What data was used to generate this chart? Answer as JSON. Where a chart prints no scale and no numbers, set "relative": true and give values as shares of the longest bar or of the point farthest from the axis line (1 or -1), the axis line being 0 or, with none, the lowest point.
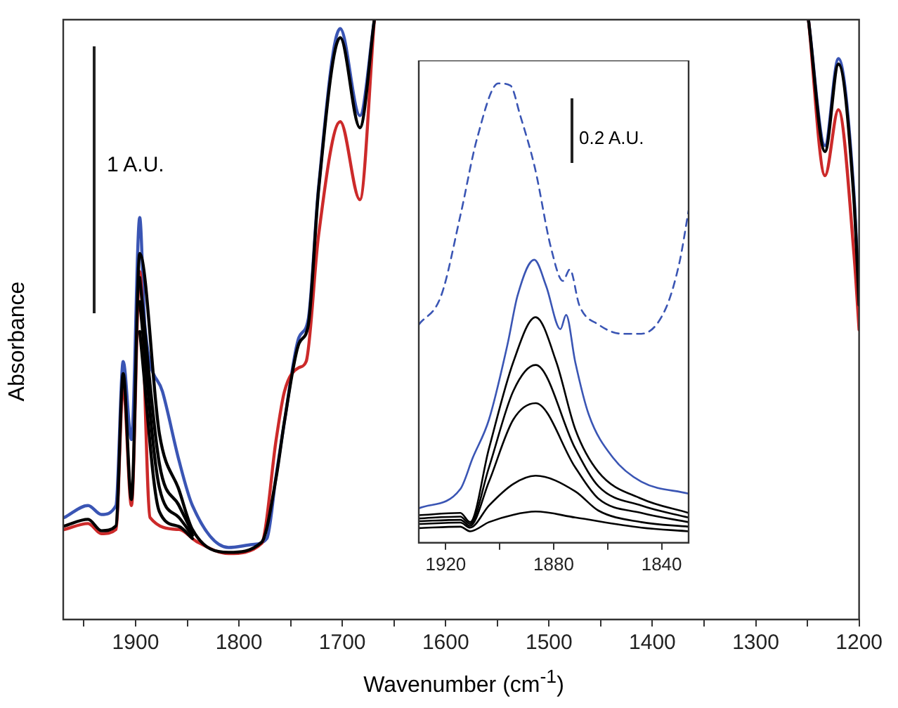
{
  "chart_data": [
    {
      "type": "line",
      "xlabel": "Wavenumber (cm$^{-1}$)",
      "ylabel": "Absorbance",
      "relative": true,
      "marker": "none",
      "xlim": [
        1970,
        1200
      ],
      "xticks": [
        {
          "value": 1950,
          "label": null
        },
        1900,
        {
          "value": 1850,
          "label": null
        },
        1800,
        {
          "value": 1750,
          "label": null
        },
        1700,
        {
          "value": 1650,
          "label": null
        },
        1600,
        {
          "value": 1550,
          "label": null
        },
        1500,
        {
          "value": 1450,
          "label": null
        },
        1400,
        {
          "value": 1350,
          "label": null
        },
        1300,
        {
          "value": 1250,
          "label": null
        },
        1200
      ],
      "annotations": [
        "1 A.U."
      ],
      "series": [
        {
          "color": "#000000",
          "x": [
            1969,
            1946,
            1933,
            1919,
            1912,
            1904,
            1896,
            1877,
            1858,
            1845,
            1810,
            1778,
            1764,
            1756,
            1742,
            1733,
            1723,
            1702,
            1683,
            1669,
            1460,
            1249,
            1233,
            1220,
            1205,
            1200
          ],
          "values": [
            0.156,
            0.167,
            0.148,
            0.156,
            0.41,
            0.2,
            0.61,
            0.31,
            0.216,
            0.15,
            0.112,
            0.129,
            0.237,
            0.33,
            0.46,
            0.49,
            0.715,
            0.97,
            0.82,
            1.0,
            null,
            1.0,
            0.78,
            0.926,
            0.7,
            0.524
          ]
        },
        {
          "color": "#000000",
          "x": [
            1896,
            1877,
            1858,
            1845
          ],
          "values": [
            0.57,
            0.26,
            0.19,
            0.145
          ]
        },
        {
          "color": "#000000",
          "x": [
            1896,
            1877,
            1858,
            1845
          ],
          "values": [
            0.53,
            0.22,
            0.17,
            0.14
          ]
        },
        {
          "color": "#000000",
          "x": [
            1896,
            1877,
            1858,
            1845
          ],
          "values": [
            0.48,
            0.18,
            0.155,
            0.135
          ]
        },
        {
          "color": "#cc2a2a",
          "x": [
            1969,
            1946,
            1933,
            1919,
            1912,
            1904,
            1896,
            1886,
            1858,
            1841,
            1810,
            1778,
            1764,
            1756,
            1742,
            1735,
            1723,
            1702,
            1683,
            1669,
            1460,
            1249,
            1233,
            1220,
            1205,
            1200
          ],
          "values": [
            0.15,
            0.16,
            0.143,
            0.15,
            0.39,
            0.19,
            0.58,
            0.17,
            0.15,
            0.13,
            0.11,
            0.127,
            0.3,
            0.38,
            0.42,
            0.43,
            0.64,
            0.83,
            0.7,
            1.0,
            null,
            1.0,
            0.74,
            0.85,
            0.61,
            0.483
          ]
        },
        {
          "color": "#3a55b4",
          "x": [
            1969,
            1946,
            1933,
            1919,
            1912,
            1904,
            1896,
            1891,
            1874,
            1858,
            1845,
            1810,
            1787,
            1773,
            1764,
            1756,
            1742,
            1733,
            1723,
            1702,
            1683,
            1669,
            1460,
            1249,
            1233,
            1220,
            1205,
            1200
          ],
          "values": [
            0.17,
            0.19,
            0.175,
            0.19,
            0.43,
            0.3,
            0.67,
            0.49,
            0.38,
            0.265,
            0.19,
            0.12,
            0.125,
            0.135,
            0.24,
            0.33,
            0.47,
            0.5,
            0.72,
            0.985,
            0.84,
            1.0,
            null,
            1.0,
            0.79,
            0.935,
            0.71,
            0.53
          ]
        }
      ]
    },
    {
      "type": "line",
      "relative": true,
      "marker": "none",
      "xlim": [
        1930,
        1830
      ],
      "xticks": [
        1920,
        {
          "value": 1900,
          "label": null
        },
        1880,
        {
          "value": 1860,
          "label": null
        },
        1840
      ],
      "annotations": [
        "0.2 A.U."
      ],
      "series": [
        {
          "color": "#000000",
          "x": [
            1930,
            1914.6,
            1911,
            1904,
            1895,
            1886.7,
            1879,
            1872,
            1863.4,
            1847.5,
            1830
          ],
          "values": [
            0.06,
            0.065,
            0.045,
            0.205,
            0.393,
            0.491,
            0.393,
            0.247,
            0.154,
            0.096,
            0.065
          ]
        },
        {
          "color": "#000000",
          "x": [
            1930,
            1914.6,
            1911,
            1904,
            1895,
            1886.7,
            1872,
            1863.4,
            1847.5,
            1830
          ],
          "values": [
            0.053,
            0.057,
            0.041,
            0.164,
            0.33,
            0.387,
            0.205,
            0.123,
            0.081,
            0.055
          ]
        },
        {
          "color": "#000000",
          "x": [
            1930,
            1914.6,
            1911,
            1904,
            1895,
            1886.7,
            1872,
            1863.4,
            1847.5,
            1830
          ],
          "values": [
            0.047,
            0.05,
            0.037,
            0.133,
            0.268,
            0.304,
            0.164,
            0.096,
            0.065,
            0.045
          ]
        },
        {
          "color": "#000000",
          "x": [
            1930,
            1914.6,
            1911,
            1904,
            1895,
            1886.7,
            1872,
            1863.4,
            1847.5,
            1830
          ],
          "values": [
            0.041,
            0.044,
            0.033,
            0.081,
            0.128,
            0.146,
            0.112,
            0.07,
            0.045,
            0.035
          ]
        },
        {
          "color": "#000000",
          "x": [
            1930,
            1914.6,
            1911,
            1904,
            1895,
            1886.7,
            1872,
            1847.5,
            1830
          ],
          "values": [
            0.032,
            0.035,
            0.025,
            0.045,
            0.061,
            0.068,
            0.055,
            0.033,
            0.025
          ]
        },
        {
          "color": "#3a55b4",
          "x": [
            1930,
            1914.6,
            1910,
            1904,
            1897,
            1893.4,
            1887.2,
            1882.8,
            1877.5,
            1875.4,
            1872,
            1867,
            1858,
            1847.5,
            1830
          ],
          "values": [
            0.075,
            0.117,
            0.185,
            0.268,
            0.435,
            0.538,
            0.616,
            0.559,
            0.465,
            0.496,
            0.393,
            0.279,
            0.185,
            0.133,
            0.107
          ]
        },
        {
          "color": "#3a55b4",
          "line_style": "dashed",
          "x": [
            1930,
            1921.7,
            1914.6,
            1908.4,
            1900.5,
            1896,
            1892.5,
            1887,
            1881,
            1876.6,
            1874,
            1870.5,
            1863.4,
            1854.6,
            1847.5,
            1838.7,
            1833.4,
            1830
          ],
          "values": [
            0.475,
            0.538,
            0.712,
            0.88,
            1.0,
            0.995,
            0.932,
            0.817,
            0.642,
            0.57,
            0.595,
            0.517,
            0.475,
            0.455,
            0.455,
            0.507,
            0.61,
            0.723
          ]
        }
      ]
    }
  ]
}
